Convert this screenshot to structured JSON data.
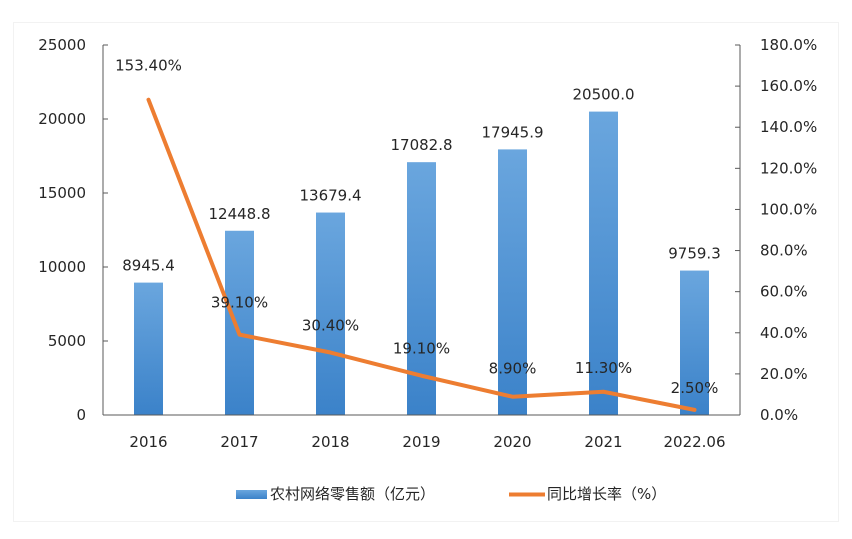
{
  "chart_data": {
    "type": "bar+line",
    "categories": [
      "2016",
      "2017",
      "2018",
      "2019",
      "2020",
      "2021",
      "2022.06"
    ],
    "series": [
      {
        "name": "农村网络零售额（亿元）",
        "type": "bar",
        "axis": "left",
        "color": "#4a8fd4",
        "values": [
          8945.4,
          12448.8,
          13679.4,
          17082.8,
          17945.9,
          20500.0,
          9759.3
        ],
        "labels": [
          "8945.4",
          "12448.8",
          "13679.4",
          "17082.8",
          "17945.9",
          "20500.0",
          "9759.3"
        ]
      },
      {
        "name": "同比增长率（%）",
        "type": "line",
        "axis": "right",
        "color": "#ed7d31",
        "values": [
          153.4,
          39.1,
          30.4,
          19.1,
          8.9,
          11.3,
          2.5
        ],
        "labels": [
          "153.40%",
          "39.10%",
          "30.40%",
          "19.10%",
          "8.90%",
          "11.30%",
          "2.50%"
        ]
      }
    ],
    "y_left": {
      "range": [
        0,
        25000
      ],
      "ticks": [
        0,
        5000,
        10000,
        15000,
        20000,
        25000
      ],
      "tick_labels": [
        "0",
        "5000",
        "10000",
        "15000",
        "20000",
        "25000"
      ]
    },
    "y_right": {
      "range": [
        0,
        180
      ],
      "ticks": [
        0,
        20,
        40,
        60,
        80,
        100,
        120,
        140,
        160,
        180
      ],
      "tick_labels": [
        "0.0%",
        "20.0%",
        "40.0%",
        "60.0%",
        "80.0%",
        "100.0%",
        "120.0%",
        "140.0%",
        "160.0%",
        "180.0%"
      ]
    },
    "title": "",
    "xlabel": "",
    "ylabel": "",
    "grid": false,
    "legend": {
      "position": "bottom",
      "items": [
        "农村网络零售额（亿元）",
        "同比增长率（%）"
      ]
    }
  }
}
